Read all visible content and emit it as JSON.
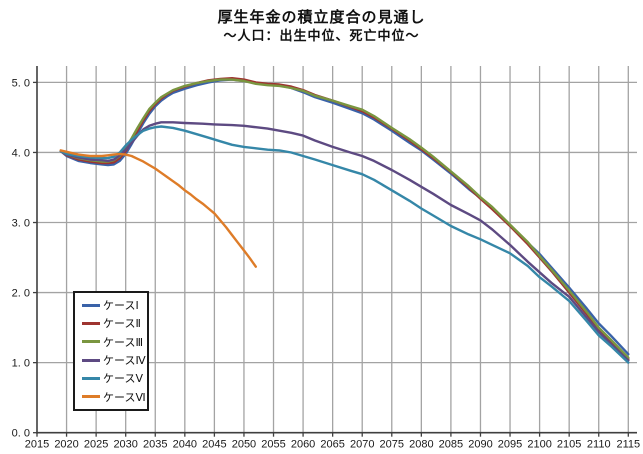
{
  "title": "厚生年金の積立度合の見通し",
  "subtitle": "～人口：出生中位、死亡中位～",
  "chart_data": {
    "type": "line",
    "title": "厚生年金の積立度合の見通し",
    "subtitle": "～人口：出生中位、死亡中位～",
    "xlabel": "",
    "ylabel": "",
    "grid": true,
    "legend_position": "lower-left-box",
    "xlim": [
      2015,
      2116
    ],
    "ylim": [
      0,
      5.2
    ],
    "x_ticks": [
      {
        "value": 2015,
        "label": "2015"
      },
      {
        "value": 2020,
        "label": "2020"
      },
      {
        "value": 2025,
        "label": "2025"
      },
      {
        "value": 2030,
        "label": "2030"
      },
      {
        "value": 2035,
        "label": "2035"
      },
      {
        "value": 2040,
        "label": "2040"
      },
      {
        "value": 2045,
        "label": "2045"
      },
      {
        "value": 2050,
        "label": "2050"
      },
      {
        "value": 2055,
        "label": "2055"
      },
      {
        "value": 2060,
        "label": "2060"
      },
      {
        "value": 2065,
        "label": "2065"
      },
      {
        "value": 2070,
        "label": "2070"
      },
      {
        "value": 2075,
        "label": "2075"
      },
      {
        "value": 2080,
        "label": "2080"
      },
      {
        "value": 2085,
        "label": "2085"
      },
      {
        "value": 2090,
        "label": "2090"
      },
      {
        "value": 2095,
        "label": "2095"
      },
      {
        "value": 2100,
        "label": "2100"
      },
      {
        "value": 2105,
        "label": "2105"
      },
      {
        "value": 2110,
        "label": "2110"
      },
      {
        "value": 2115,
        "label": "2115"
      }
    ],
    "y_ticks": [
      {
        "value": 0,
        "label": "0. 0"
      },
      {
        "value": 1,
        "label": "1. 0"
      },
      {
        "value": 2,
        "label": "2. 0"
      },
      {
        "value": 3,
        "label": "3. 0"
      },
      {
        "value": 4,
        "label": "4. 0"
      },
      {
        "value": 5,
        "label": "5. 0"
      }
    ],
    "series": [
      {
        "name": "ケースⅠ",
        "color": "#3a62a8",
        "points": [
          [
            2019,
            4.02
          ],
          [
            2020,
            3.95
          ],
          [
            2022,
            3.88
          ],
          [
            2024,
            3.85
          ],
          [
            2026,
            3.83
          ],
          [
            2027,
            3.82
          ],
          [
            2028,
            3.83
          ],
          [
            2029,
            3.88
          ],
          [
            2030,
            3.98
          ],
          [
            2031,
            4.12
          ],
          [
            2032,
            4.27
          ],
          [
            2033,
            4.42
          ],
          [
            2034,
            4.55
          ],
          [
            2035,
            4.66
          ],
          [
            2036,
            4.74
          ],
          [
            2037,
            4.8
          ],
          [
            2038,
            4.85
          ],
          [
            2040,
            4.91
          ],
          [
            2042,
            4.96
          ],
          [
            2044,
            5.0
          ],
          [
            2046,
            5.03
          ],
          [
            2048,
            5.04
          ],
          [
            2050,
            5.02
          ],
          [
            2052,
            4.99
          ],
          [
            2054,
            4.97
          ],
          [
            2056,
            4.96
          ],
          [
            2058,
            4.92
          ],
          [
            2060,
            4.86
          ],
          [
            2062,
            4.79
          ],
          [
            2065,
            4.71
          ],
          [
            2068,
            4.62
          ],
          [
            2070,
            4.56
          ],
          [
            2072,
            4.47
          ],
          [
            2075,
            4.31
          ],
          [
            2078,
            4.14
          ],
          [
            2080,
            4.03
          ],
          [
            2082,
            3.9
          ],
          [
            2085,
            3.7
          ],
          [
            2088,
            3.48
          ],
          [
            2090,
            3.35
          ],
          [
            2092,
            3.21
          ],
          [
            2095,
            2.96
          ],
          [
            2098,
            2.71
          ],
          [
            2100,
            2.55
          ],
          [
            2102,
            2.36
          ],
          [
            2105,
            2.07
          ],
          [
            2108,
            1.77
          ],
          [
            2110,
            1.56
          ],
          [
            2112,
            1.39
          ],
          [
            2115,
            1.12
          ]
        ]
      },
      {
        "name": "ケースⅡ",
        "color": "#9e3430",
        "points": [
          [
            2019,
            4.02
          ],
          [
            2020,
            3.96
          ],
          [
            2022,
            3.9
          ],
          [
            2024,
            3.87
          ],
          [
            2026,
            3.85
          ],
          [
            2027,
            3.85
          ],
          [
            2028,
            3.86
          ],
          [
            2029,
            3.92
          ],
          [
            2030,
            4.02
          ],
          [
            2031,
            4.16
          ],
          [
            2032,
            4.31
          ],
          [
            2033,
            4.46
          ],
          [
            2034,
            4.59
          ],
          [
            2035,
            4.69
          ],
          [
            2036,
            4.77
          ],
          [
            2037,
            4.83
          ],
          [
            2038,
            4.88
          ],
          [
            2040,
            4.94
          ],
          [
            2042,
            4.99
          ],
          [
            2044,
            5.03
          ],
          [
            2046,
            5.05
          ],
          [
            2048,
            5.06
          ],
          [
            2050,
            5.04
          ],
          [
            2052,
            5.0
          ],
          [
            2054,
            4.98
          ],
          [
            2056,
            4.97
          ],
          [
            2058,
            4.94
          ],
          [
            2060,
            4.89
          ],
          [
            2062,
            4.82
          ],
          [
            2065,
            4.74
          ],
          [
            2068,
            4.65
          ],
          [
            2070,
            4.59
          ],
          [
            2072,
            4.5
          ],
          [
            2075,
            4.34
          ],
          [
            2078,
            4.17
          ],
          [
            2080,
            4.05
          ],
          [
            2082,
            3.92
          ],
          [
            2085,
            3.72
          ],
          [
            2088,
            3.5
          ],
          [
            2090,
            3.34
          ],
          [
            2092,
            3.19
          ],
          [
            2095,
            2.95
          ],
          [
            2098,
            2.69
          ],
          [
            2100,
            2.5
          ],
          [
            2102,
            2.31
          ],
          [
            2105,
            2.0
          ],
          [
            2108,
            1.69
          ],
          [
            2110,
            1.48
          ],
          [
            2112,
            1.31
          ],
          [
            2115,
            1.05
          ]
        ]
      },
      {
        "name": "ケースⅢ",
        "color": "#7a9640",
        "points": [
          [
            2019,
            4.02
          ],
          [
            2020,
            3.97
          ],
          [
            2022,
            3.92
          ],
          [
            2024,
            3.89
          ],
          [
            2026,
            3.87
          ],
          [
            2027,
            3.87
          ],
          [
            2028,
            3.89
          ],
          [
            2029,
            3.95
          ],
          [
            2030,
            4.06
          ],
          [
            2031,
            4.2
          ],
          [
            2032,
            4.35
          ],
          [
            2033,
            4.49
          ],
          [
            2034,
            4.62
          ],
          [
            2035,
            4.71
          ],
          [
            2036,
            4.79
          ],
          [
            2037,
            4.84
          ],
          [
            2038,
            4.89
          ],
          [
            2040,
            4.95
          ],
          [
            2042,
            4.99
          ],
          [
            2044,
            5.02
          ],
          [
            2046,
            5.04
          ],
          [
            2048,
            5.04
          ],
          [
            2050,
            5.02
          ],
          [
            2052,
            4.98
          ],
          [
            2054,
            4.96
          ],
          [
            2056,
            4.95
          ],
          [
            2058,
            4.92
          ],
          [
            2060,
            4.88
          ],
          [
            2062,
            4.81
          ],
          [
            2065,
            4.74
          ],
          [
            2068,
            4.66
          ],
          [
            2070,
            4.61
          ],
          [
            2072,
            4.52
          ],
          [
            2075,
            4.35
          ],
          [
            2078,
            4.19
          ],
          [
            2080,
            4.07
          ],
          [
            2082,
            3.94
          ],
          [
            2085,
            3.73
          ],
          [
            2088,
            3.52
          ],
          [
            2090,
            3.36
          ],
          [
            2092,
            3.22
          ],
          [
            2095,
            2.97
          ],
          [
            2098,
            2.72
          ],
          [
            2100,
            2.52
          ],
          [
            2102,
            2.33
          ],
          [
            2105,
            2.03
          ],
          [
            2108,
            1.72
          ],
          [
            2110,
            1.5
          ],
          [
            2112,
            1.33
          ],
          [
            2115,
            1.07
          ]
        ]
      },
      {
        "name": "ケースⅣ",
        "color": "#5d4a82",
        "points": [
          [
            2019,
            4.02
          ],
          [
            2020,
            3.97
          ],
          [
            2022,
            3.93
          ],
          [
            2024,
            3.9
          ],
          [
            2026,
            3.89
          ],
          [
            2027,
            3.88
          ],
          [
            2028,
            3.9
          ],
          [
            2029,
            3.96
          ],
          [
            2030,
            4.04
          ],
          [
            2031,
            4.14
          ],
          [
            2032,
            4.24
          ],
          [
            2033,
            4.33
          ],
          [
            2034,
            4.38
          ],
          [
            2035,
            4.41
          ],
          [
            2036,
            4.43
          ],
          [
            2038,
            4.43
          ],
          [
            2040,
            4.42
          ],
          [
            2043,
            4.41
          ],
          [
            2045,
            4.4
          ],
          [
            2048,
            4.39
          ],
          [
            2050,
            4.38
          ],
          [
            2052,
            4.36
          ],
          [
            2054,
            4.34
          ],
          [
            2056,
            4.31
          ],
          [
            2058,
            4.28
          ],
          [
            2060,
            4.24
          ],
          [
            2062,
            4.17
          ],
          [
            2065,
            4.08
          ],
          [
            2068,
            4.0
          ],
          [
            2070,
            3.95
          ],
          [
            2072,
            3.88
          ],
          [
            2075,
            3.75
          ],
          [
            2078,
            3.61
          ],
          [
            2080,
            3.51
          ],
          [
            2082,
            3.41
          ],
          [
            2085,
            3.25
          ],
          [
            2088,
            3.12
          ],
          [
            2090,
            3.03
          ],
          [
            2092,
            2.9
          ],
          [
            2095,
            2.68
          ],
          [
            2098,
            2.44
          ],
          [
            2100,
            2.29
          ],
          [
            2102,
            2.14
          ],
          [
            2105,
            1.94
          ],
          [
            2108,
            1.64
          ],
          [
            2110,
            1.44
          ],
          [
            2112,
            1.27
          ],
          [
            2115,
            1.03
          ]
        ]
      },
      {
        "name": "ケースⅤ",
        "color": "#3587a8",
        "points": [
          [
            2019,
            4.02
          ],
          [
            2020,
            3.98
          ],
          [
            2022,
            3.95
          ],
          [
            2024,
            3.93
          ],
          [
            2026,
            3.92
          ],
          [
            2027,
            3.92
          ],
          [
            2028,
            3.94
          ],
          [
            2029,
            4.0
          ],
          [
            2030,
            4.1
          ],
          [
            2031,
            4.18
          ],
          [
            2032,
            4.25
          ],
          [
            2033,
            4.31
          ],
          [
            2034,
            4.34
          ],
          [
            2035,
            4.36
          ],
          [
            2036,
            4.37
          ],
          [
            2038,
            4.35
          ],
          [
            2040,
            4.31
          ],
          [
            2042,
            4.26
          ],
          [
            2044,
            4.21
          ],
          [
            2046,
            4.16
          ],
          [
            2048,
            4.11
          ],
          [
            2050,
            4.08
          ],
          [
            2052,
            4.06
          ],
          [
            2054,
            4.04
          ],
          [
            2056,
            4.03
          ],
          [
            2058,
            4.0
          ],
          [
            2060,
            3.95
          ],
          [
            2062,
            3.9
          ],
          [
            2065,
            3.82
          ],
          [
            2068,
            3.74
          ],
          [
            2070,
            3.69
          ],
          [
            2072,
            3.61
          ],
          [
            2075,
            3.46
          ],
          [
            2078,
            3.31
          ],
          [
            2080,
            3.2
          ],
          [
            2082,
            3.1
          ],
          [
            2085,
            2.95
          ],
          [
            2088,
            2.83
          ],
          [
            2090,
            2.76
          ],
          [
            2092,
            2.68
          ],
          [
            2095,
            2.56
          ],
          [
            2098,
            2.38
          ],
          [
            2100,
            2.22
          ],
          [
            2102,
            2.09
          ],
          [
            2105,
            1.88
          ],
          [
            2108,
            1.59
          ],
          [
            2110,
            1.39
          ],
          [
            2112,
            1.24
          ],
          [
            2115,
            1.0
          ]
        ]
      },
      {
        "name": "ケースⅥ",
        "color": "#de7c28",
        "points": [
          [
            2019,
            4.03
          ],
          [
            2020,
            4.01
          ],
          [
            2021,
            3.99
          ],
          [
            2022,
            3.97
          ],
          [
            2023,
            3.96
          ],
          [
            2024,
            3.95
          ],
          [
            2025,
            3.95
          ],
          [
            2026,
            3.95
          ],
          [
            2027,
            3.96
          ],
          [
            2028,
            3.97
          ],
          [
            2029,
            3.98
          ],
          [
            2030,
            3.97
          ],
          [
            2031,
            3.95
          ],
          [
            2032,
            3.91
          ],
          [
            2033,
            3.87
          ],
          [
            2034,
            3.82
          ],
          [
            2035,
            3.77
          ],
          [
            2036,
            3.71
          ],
          [
            2037,
            3.65
          ],
          [
            2038,
            3.59
          ],
          [
            2039,
            3.53
          ],
          [
            2040,
            3.46
          ],
          [
            2041,
            3.4
          ],
          [
            2042,
            3.33
          ],
          [
            2043,
            3.27
          ],
          [
            2044,
            3.2
          ],
          [
            2045,
            3.13
          ],
          [
            2046,
            3.03
          ],
          [
            2047,
            2.93
          ],
          [
            2048,
            2.82
          ],
          [
            2049,
            2.71
          ],
          [
            2050,
            2.6
          ],
          [
            2051,
            2.49
          ],
          [
            2052,
            2.37
          ]
        ]
      }
    ]
  }
}
